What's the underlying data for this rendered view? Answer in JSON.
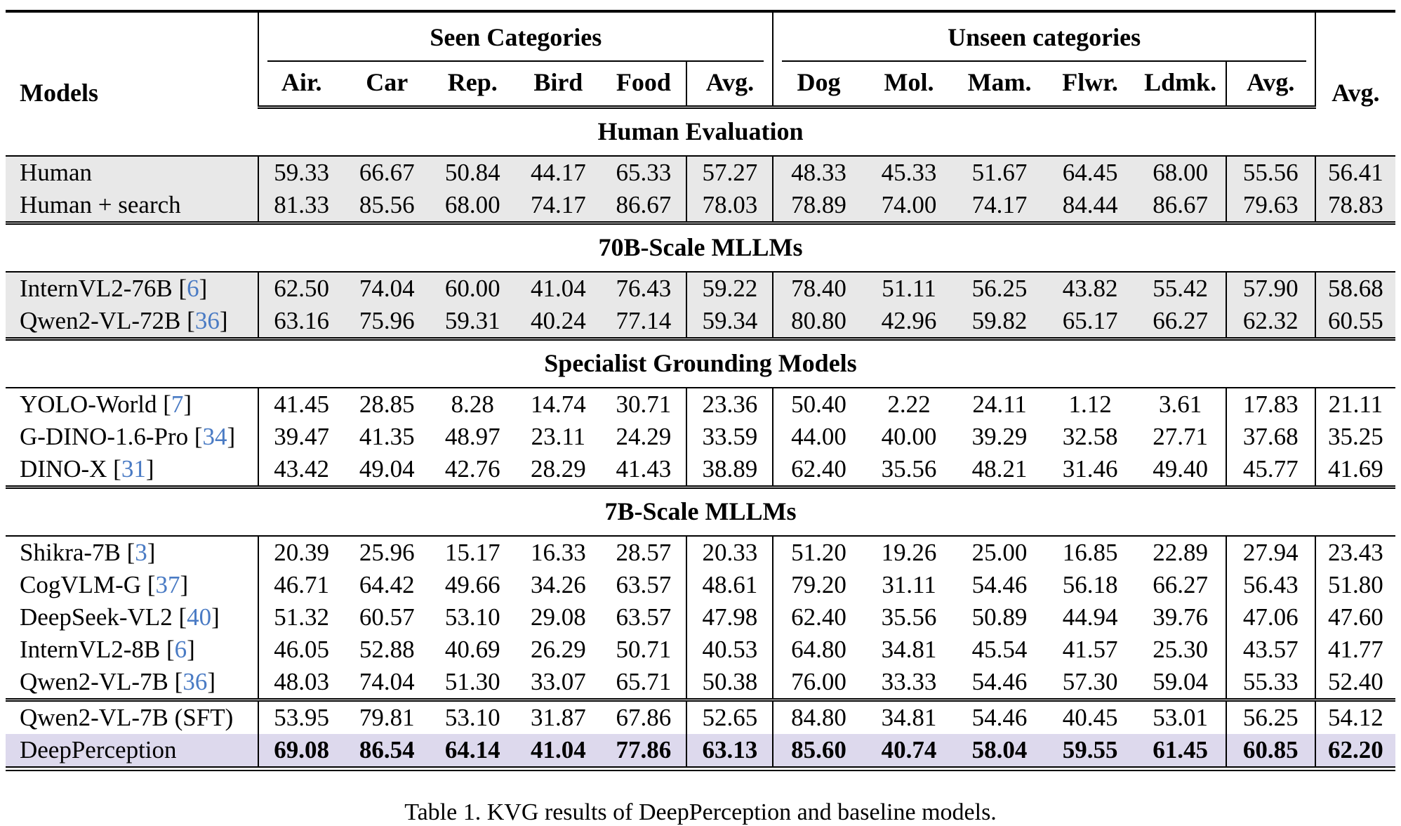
{
  "colors": {
    "row_shade_gray": "#e8e8e8",
    "highlight_purple": "#ddd9ed",
    "citation_blue": "#4a7bc4"
  },
  "table": {
    "caption": "Table 1. KVG results of DeepPerception and baseline models.",
    "header": {
      "models": "Models",
      "seen_group": "Seen Categories",
      "unseen_group": "Unseen categories",
      "avg_overall": "Avg.",
      "seen_cols": [
        "Air.",
        "Car",
        "Rep.",
        "Bird",
        "Food",
        "Avg."
      ],
      "unseen_cols": [
        "Dog",
        "Mol.",
        "Mam.",
        "Flwr.",
        "Ldmk.",
        "Avg."
      ]
    },
    "sections": [
      {
        "title": "Human Evaluation",
        "shade": "gray",
        "rows": [
          {
            "model": "Human",
            "values": [
              "59.33",
              "66.67",
              "50.84",
              "44.17",
              "65.33",
              "57.27",
              "48.33",
              "45.33",
              "51.67",
              "64.45",
              "68.00",
              "55.56",
              "56.41"
            ]
          },
          {
            "model": "Human + search",
            "values": [
              "81.33",
              "85.56",
              "68.00",
              "74.17",
              "86.67",
              "78.03",
              "78.89",
              "74.00",
              "74.17",
              "84.44",
              "86.67",
              "79.63",
              "78.83"
            ]
          }
        ]
      },
      {
        "title": "70B-Scale MLLMs",
        "shade": "gray",
        "rows": [
          {
            "model": "InternVL2-76B",
            "cite": "6",
            "values": [
              "62.50",
              "74.04",
              "60.00",
              "41.04",
              "76.43",
              "59.22",
              "78.40",
              "51.11",
              "56.25",
              "43.82",
              "55.42",
              "57.90",
              "58.68"
            ]
          },
          {
            "model": "Qwen2-VL-72B",
            "cite": "36",
            "values": [
              "63.16",
              "75.96",
              "59.31",
              "40.24",
              "77.14",
              "59.34",
              "80.80",
              "42.96",
              "59.82",
              "65.17",
              "66.27",
              "62.32",
              "60.55"
            ]
          }
        ]
      },
      {
        "title": "Specialist Grounding Models",
        "shade": "white",
        "rows": [
          {
            "model": "YOLO-World",
            "cite": "7",
            "values": [
              "41.45",
              "28.85",
              "8.28",
              "14.74",
              "30.71",
              "23.36",
              "50.40",
              "2.22",
              "24.11",
              "1.12",
              "3.61",
              "17.83",
              "21.11"
            ]
          },
          {
            "model": "G-DINO-1.6-Pro",
            "cite": "34",
            "values": [
              "39.47",
              "41.35",
              "48.97",
              "23.11",
              "24.29",
              "33.59",
              "44.00",
              "40.00",
              "39.29",
              "32.58",
              "27.71",
              "37.68",
              "35.25"
            ]
          },
          {
            "model": "DINO-X",
            "cite": "31",
            "values": [
              "43.42",
              "49.04",
              "42.76",
              "28.29",
              "41.43",
              "38.89",
              "62.40",
              "35.56",
              "48.21",
              "31.46",
              "49.40",
              "45.77",
              "41.69"
            ]
          }
        ]
      },
      {
        "title": "7B-Scale MLLMs",
        "shade": "white",
        "rows": [
          {
            "model": "Shikra-7B",
            "cite": "3",
            "values": [
              "20.39",
              "25.96",
              "15.17",
              "16.33",
              "28.57",
              "20.33",
              "51.20",
              "19.26",
              "25.00",
              "16.85",
              "22.89",
              "27.94",
              "23.43"
            ]
          },
          {
            "model": "CogVLM-G",
            "cite": "37",
            "values": [
              "46.71",
              "64.42",
              "49.66",
              "34.26",
              "63.57",
              "48.61",
              "79.20",
              "31.11",
              "54.46",
              "56.18",
              "66.27",
              "56.43",
              "51.80"
            ]
          },
          {
            "model": "DeepSeek-VL2",
            "cite": "40",
            "values": [
              "51.32",
              "60.57",
              "53.10",
              "29.08",
              "63.57",
              "47.98",
              "62.40",
              "35.56",
              "50.89",
              "44.94",
              "39.76",
              "47.06",
              "47.60"
            ]
          },
          {
            "model": "InternVL2-8B",
            "cite": "6",
            "values": [
              "46.05",
              "52.88",
              "40.69",
              "26.29",
              "50.71",
              "40.53",
              "64.80",
              "34.81",
              "45.54",
              "41.57",
              "25.30",
              "43.57",
              "41.77"
            ]
          },
          {
            "model": "Qwen2-VL-7B",
            "cite": "36",
            "values": [
              "48.03",
              "74.04",
              "51.30",
              "33.07",
              "65.71",
              "50.38",
              "76.00",
              "33.33",
              "54.46",
              "57.30",
              "59.04",
              "55.33",
              "52.40"
            ]
          }
        ]
      },
      {
        "title": null,
        "shade": "white",
        "rows": [
          {
            "model": "Qwen2-VL-7B (SFT)",
            "values": [
              "53.95",
              "79.81",
              "53.10",
              "31.87",
              "67.86",
              "52.65",
              "84.80",
              "34.81",
              "54.46",
              "40.45",
              "53.01",
              "56.25",
              "54.12"
            ]
          },
          {
            "model": "DeepPerception",
            "highlight": true,
            "bold_values": true,
            "values": [
              "69.08",
              "86.54",
              "64.14",
              "41.04",
              "77.86",
              "63.13",
              "85.60",
              "40.74",
              "58.04",
              "59.55",
              "61.45",
              "60.85",
              "62.20"
            ]
          }
        ]
      }
    ]
  }
}
